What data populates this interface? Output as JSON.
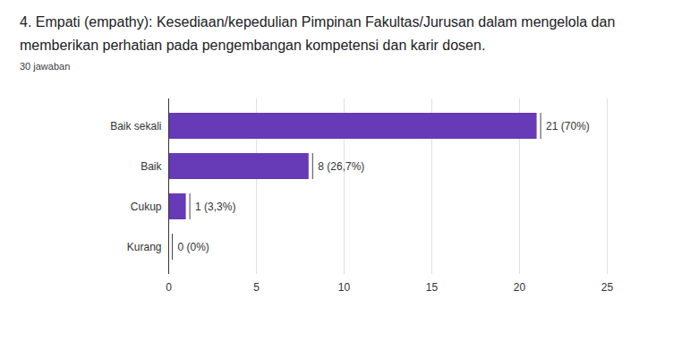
{
  "chart_data": {
    "type": "bar",
    "title": "4. Empati (empathy):  Kesediaan/kepedulian Pimpinan Fakultas/Jurusan dalam mengelola dan memberikan perhatian pada pengembangan kompetensi dan karir dosen.",
    "subtitle": "30 jawaban",
    "categories": [
      "Baik sekali",
      "Baik",
      "Cukup",
      "Kurang"
    ],
    "values": [
      21,
      8,
      1,
      0
    ],
    "value_labels": [
      "21 (70%)",
      "8 (26,7%)",
      "1 (3,3%)",
      "0 (0%)"
    ],
    "color": "#673ab7",
    "orientation": "horizontal",
    "data_labels": true,
    "grid": true,
    "xlim": [
      0,
      25
    ],
    "xticks": [
      0,
      5,
      10,
      15,
      20,
      25
    ]
  }
}
